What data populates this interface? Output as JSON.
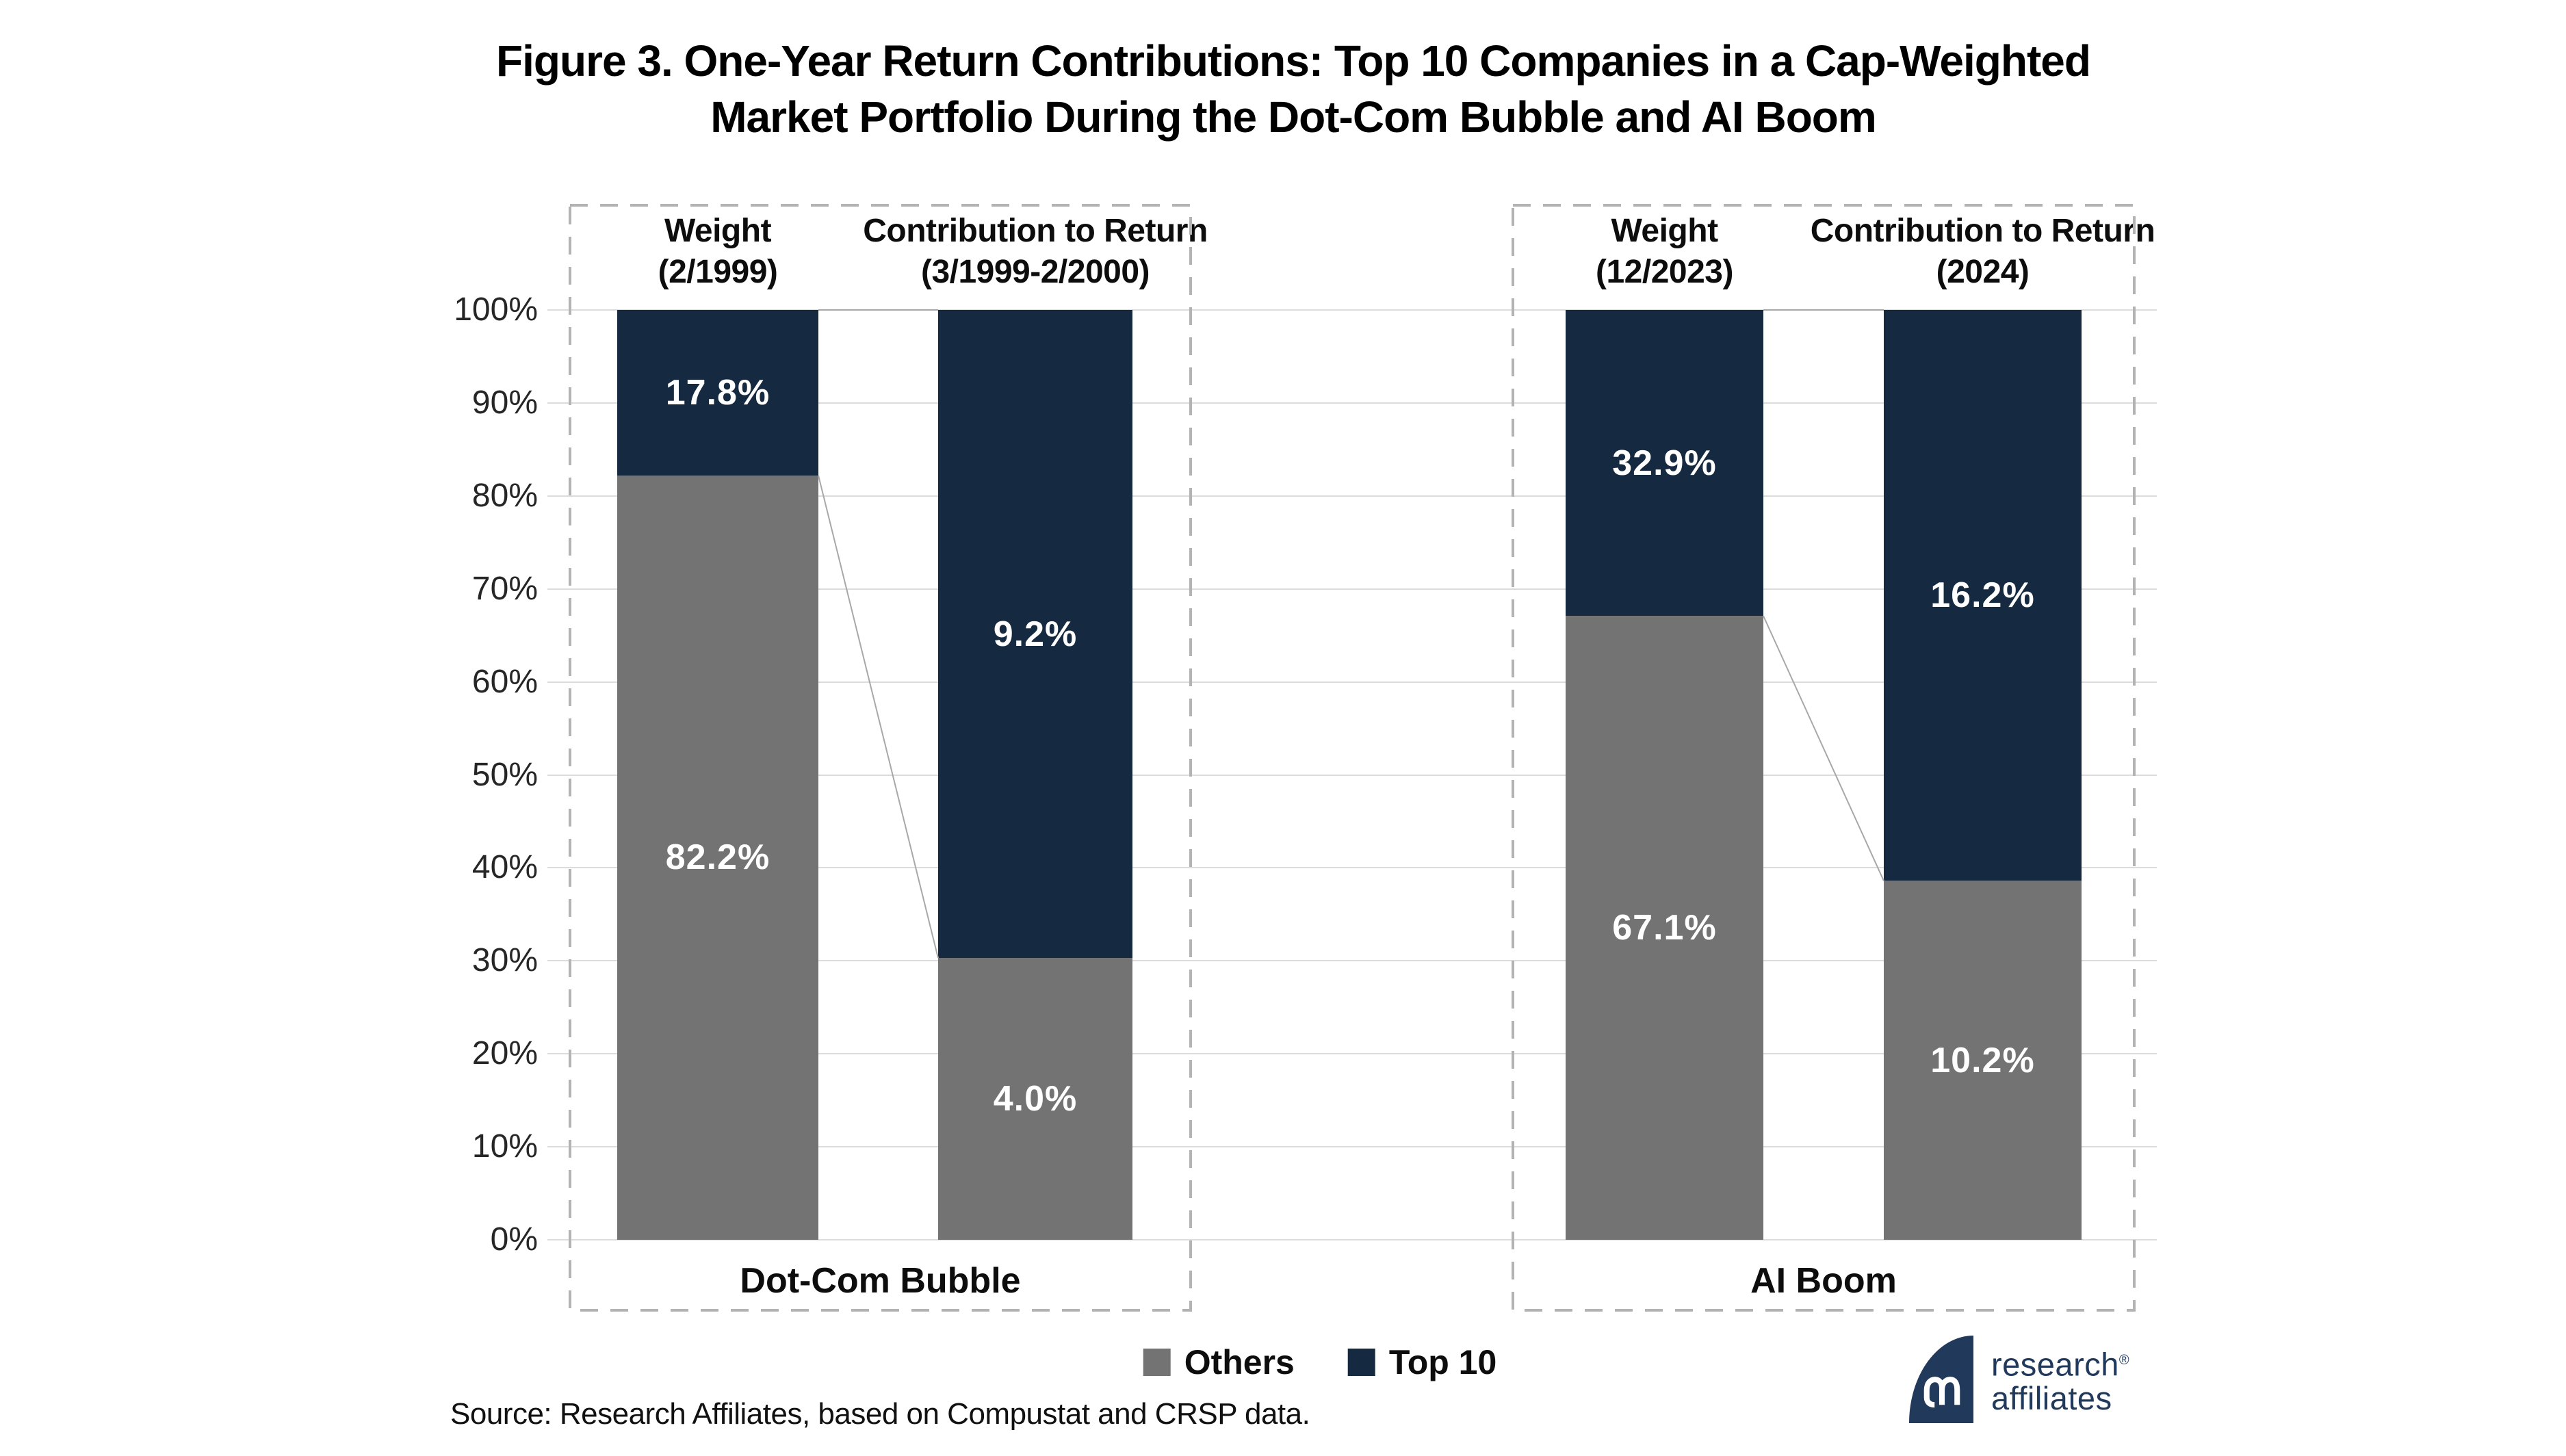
{
  "title": {
    "line1": "Figure 3. One-Year Return Contributions: Top 10 Companies in a Cap-Weighted",
    "line2": "Market Portfolio During the Dot-Com Bubble and AI Boom"
  },
  "source": "Source: Research Affiliates, based on Compustat and CRSP data.",
  "logo": {
    "line1": "research",
    "line2": "affiliates",
    "registered": "®",
    "monogram": "RA-monogram"
  },
  "colors": {
    "top10": "#152a40",
    "others": "#737373",
    "gridline": "#dcdcdc",
    "panel_border": "#b3b3b3",
    "connector": "#a8a8a8",
    "logo_navy": "#21395b"
  },
  "y_axis": {
    "min": 0,
    "max": 100,
    "step": 10,
    "tick_labels": [
      "0%",
      "10%",
      "20%",
      "30%",
      "40%",
      "50%",
      "60%",
      "70%",
      "80%",
      "90%",
      "100%"
    ]
  },
  "legend": {
    "items": [
      {
        "label": "Others",
        "color_key": "others"
      },
      {
        "label": "Top 10",
        "color_key": "top10"
      }
    ]
  },
  "chart_data": {
    "type": "bar",
    "subtype": "stacked-100-percent",
    "title": "Figure 3. One-Year Return Contributions: Top 10 Companies in a Cap-Weighted Market Portfolio During the Dot-Com Bubble and AI Boom",
    "ylabel": "",
    "ylim": [
      0,
      100
    ],
    "grid": true,
    "legend_position": "bottom-center",
    "panels": [
      {
        "category": "Dot-Com Bubble",
        "bars": [
          {
            "header": "Weight",
            "period": "(2/1999)",
            "top10": {
              "label": "17.8%",
              "value": 17.8,
              "drawn_stack_pct": 17.8
            },
            "others": {
              "label": "82.2%",
              "value": 82.2,
              "drawn_stack_pct": 82.2
            }
          },
          {
            "header": "Contribution to Return",
            "period": "(3/1999-2/2000)",
            "top10": {
              "label": "9.2%",
              "value": 9.2,
              "drawn_stack_pct": 69.7
            },
            "others": {
              "label": "4.0%",
              "value": 4.0,
              "drawn_stack_pct": 30.3
            }
          }
        ]
      },
      {
        "category": "AI Boom",
        "bars": [
          {
            "header": "Weight",
            "period": "(12/2023)",
            "top10": {
              "label": "32.9%",
              "value": 32.9,
              "drawn_stack_pct": 32.9
            },
            "others": {
              "label": "67.1%",
              "value": 67.1,
              "drawn_stack_pct": 67.1
            }
          },
          {
            "header": "Contribution to Return",
            "period": "(2024)",
            "top10": {
              "label": "16.2%",
              "value": 16.2,
              "drawn_stack_pct": 61.4
            },
            "others": {
              "label": "10.2%",
              "value": 10.2,
              "drawn_stack_pct": 38.6
            }
          }
        ]
      }
    ]
  }
}
